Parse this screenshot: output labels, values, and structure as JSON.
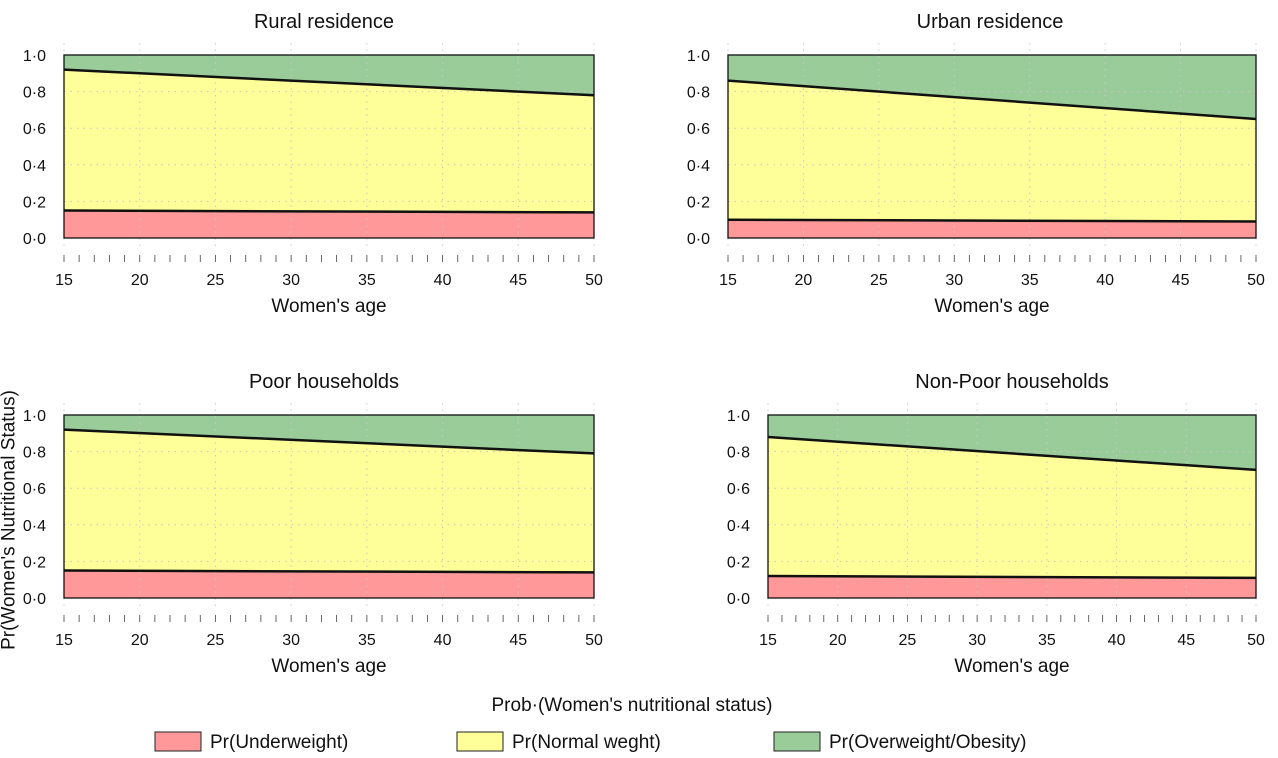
{
  "figure": {
    "ylabel": "Pr(Women's Nutritional Status)",
    "legend_title": "Prob·(Women's nutritional status)",
    "colors": {
      "underweight": "#ff9999",
      "normal": "#ffff99",
      "overweight": "#99cc99",
      "boundary": "#111111",
      "grid": "#c8c8c8"
    }
  },
  "legend": [
    {
      "label": "Pr(Underweight)",
      "color": "#ff9999"
    },
    {
      "label": "Pr(Normal weght)",
      "color": "#ffff99"
    },
    {
      "label": "Pr(Overweight/Obesity)",
      "color": "#99cc99"
    }
  ],
  "chart_data": [
    {
      "type": "area",
      "title": "Rural residence",
      "xlabel": "Women's age",
      "ylabel": "",
      "x": [
        15,
        50
      ],
      "xlim": [
        15,
        50
      ],
      "ylim": [
        0,
        1
      ],
      "xticks": [
        "15",
        "20",
        "25",
        "30",
        "35",
        "40",
        "45",
        "50"
      ],
      "yticks": [
        "0·0",
        "0·2",
        "0·4",
        "0·6",
        "0·8",
        "1·0"
      ],
      "cumulative_boundaries": [
        {
          "name": "Pr(Underweight)",
          "values": [
            0.15,
            0.14
          ]
        },
        {
          "name": "Pr(Normal weght)",
          "values": [
            0.92,
            0.78
          ]
        },
        {
          "name": "Pr(Overweight/Obesity)",
          "values": [
            1.0,
            1.0
          ]
        }
      ]
    },
    {
      "type": "area",
      "title": "Urban residence",
      "xlabel": "Women's age",
      "ylabel": "",
      "x": [
        15,
        50
      ],
      "xlim": [
        15,
        50
      ],
      "ylim": [
        0,
        1
      ],
      "xticks": [
        "15",
        "20",
        "25",
        "30",
        "35",
        "40",
        "45",
        "50"
      ],
      "yticks": [
        "0·0",
        "0·2",
        "0·4",
        "0·6",
        "0·8",
        "1·0"
      ],
      "cumulative_boundaries": [
        {
          "name": "Pr(Underweight)",
          "values": [
            0.1,
            0.09
          ]
        },
        {
          "name": "Pr(Normal weght)",
          "values": [
            0.86,
            0.65
          ]
        },
        {
          "name": "Pr(Overweight/Obesity)",
          "values": [
            1.0,
            1.0
          ]
        }
      ]
    },
    {
      "type": "area",
      "title": "Poor households",
      "xlabel": "Women's age",
      "ylabel": "",
      "x": [
        15,
        50
      ],
      "xlim": [
        15,
        50
      ],
      "ylim": [
        0,
        1
      ],
      "xticks": [
        "15",
        "20",
        "25",
        "30",
        "35",
        "40",
        "45",
        "50"
      ],
      "yticks": [
        "0·0",
        "0·2",
        "0·4",
        "0·6",
        "0·8",
        "1·0"
      ],
      "cumulative_boundaries": [
        {
          "name": "Pr(Underweight)",
          "values": [
            0.15,
            0.14
          ]
        },
        {
          "name": "Pr(Normal weght)",
          "values": [
            0.92,
            0.79
          ]
        },
        {
          "name": "Pr(Overweight/Obesity)",
          "values": [
            1.0,
            1.0
          ]
        }
      ]
    },
    {
      "type": "area",
      "title": "Non-Poor households",
      "xlabel": "Women's age",
      "ylabel": "",
      "x": [
        15,
        50
      ],
      "xlim": [
        15,
        50
      ],
      "ylim": [
        0,
        1
      ],
      "xticks": [
        "15",
        "20",
        "25",
        "30",
        "35",
        "40",
        "45",
        "50"
      ],
      "yticks": [
        "0·0",
        "0·2",
        "0·4",
        "0·6",
        "0·8",
        "1·0"
      ],
      "cumulative_boundaries": [
        {
          "name": "Pr(Underweight)",
          "values": [
            0.12,
            0.11
          ]
        },
        {
          "name": "Pr(Normal weght)",
          "values": [
            0.88,
            0.7
          ]
        },
        {
          "name": "Pr(Overweight/Obesity)",
          "values": [
            1.0,
            1.0
          ]
        }
      ]
    }
  ]
}
